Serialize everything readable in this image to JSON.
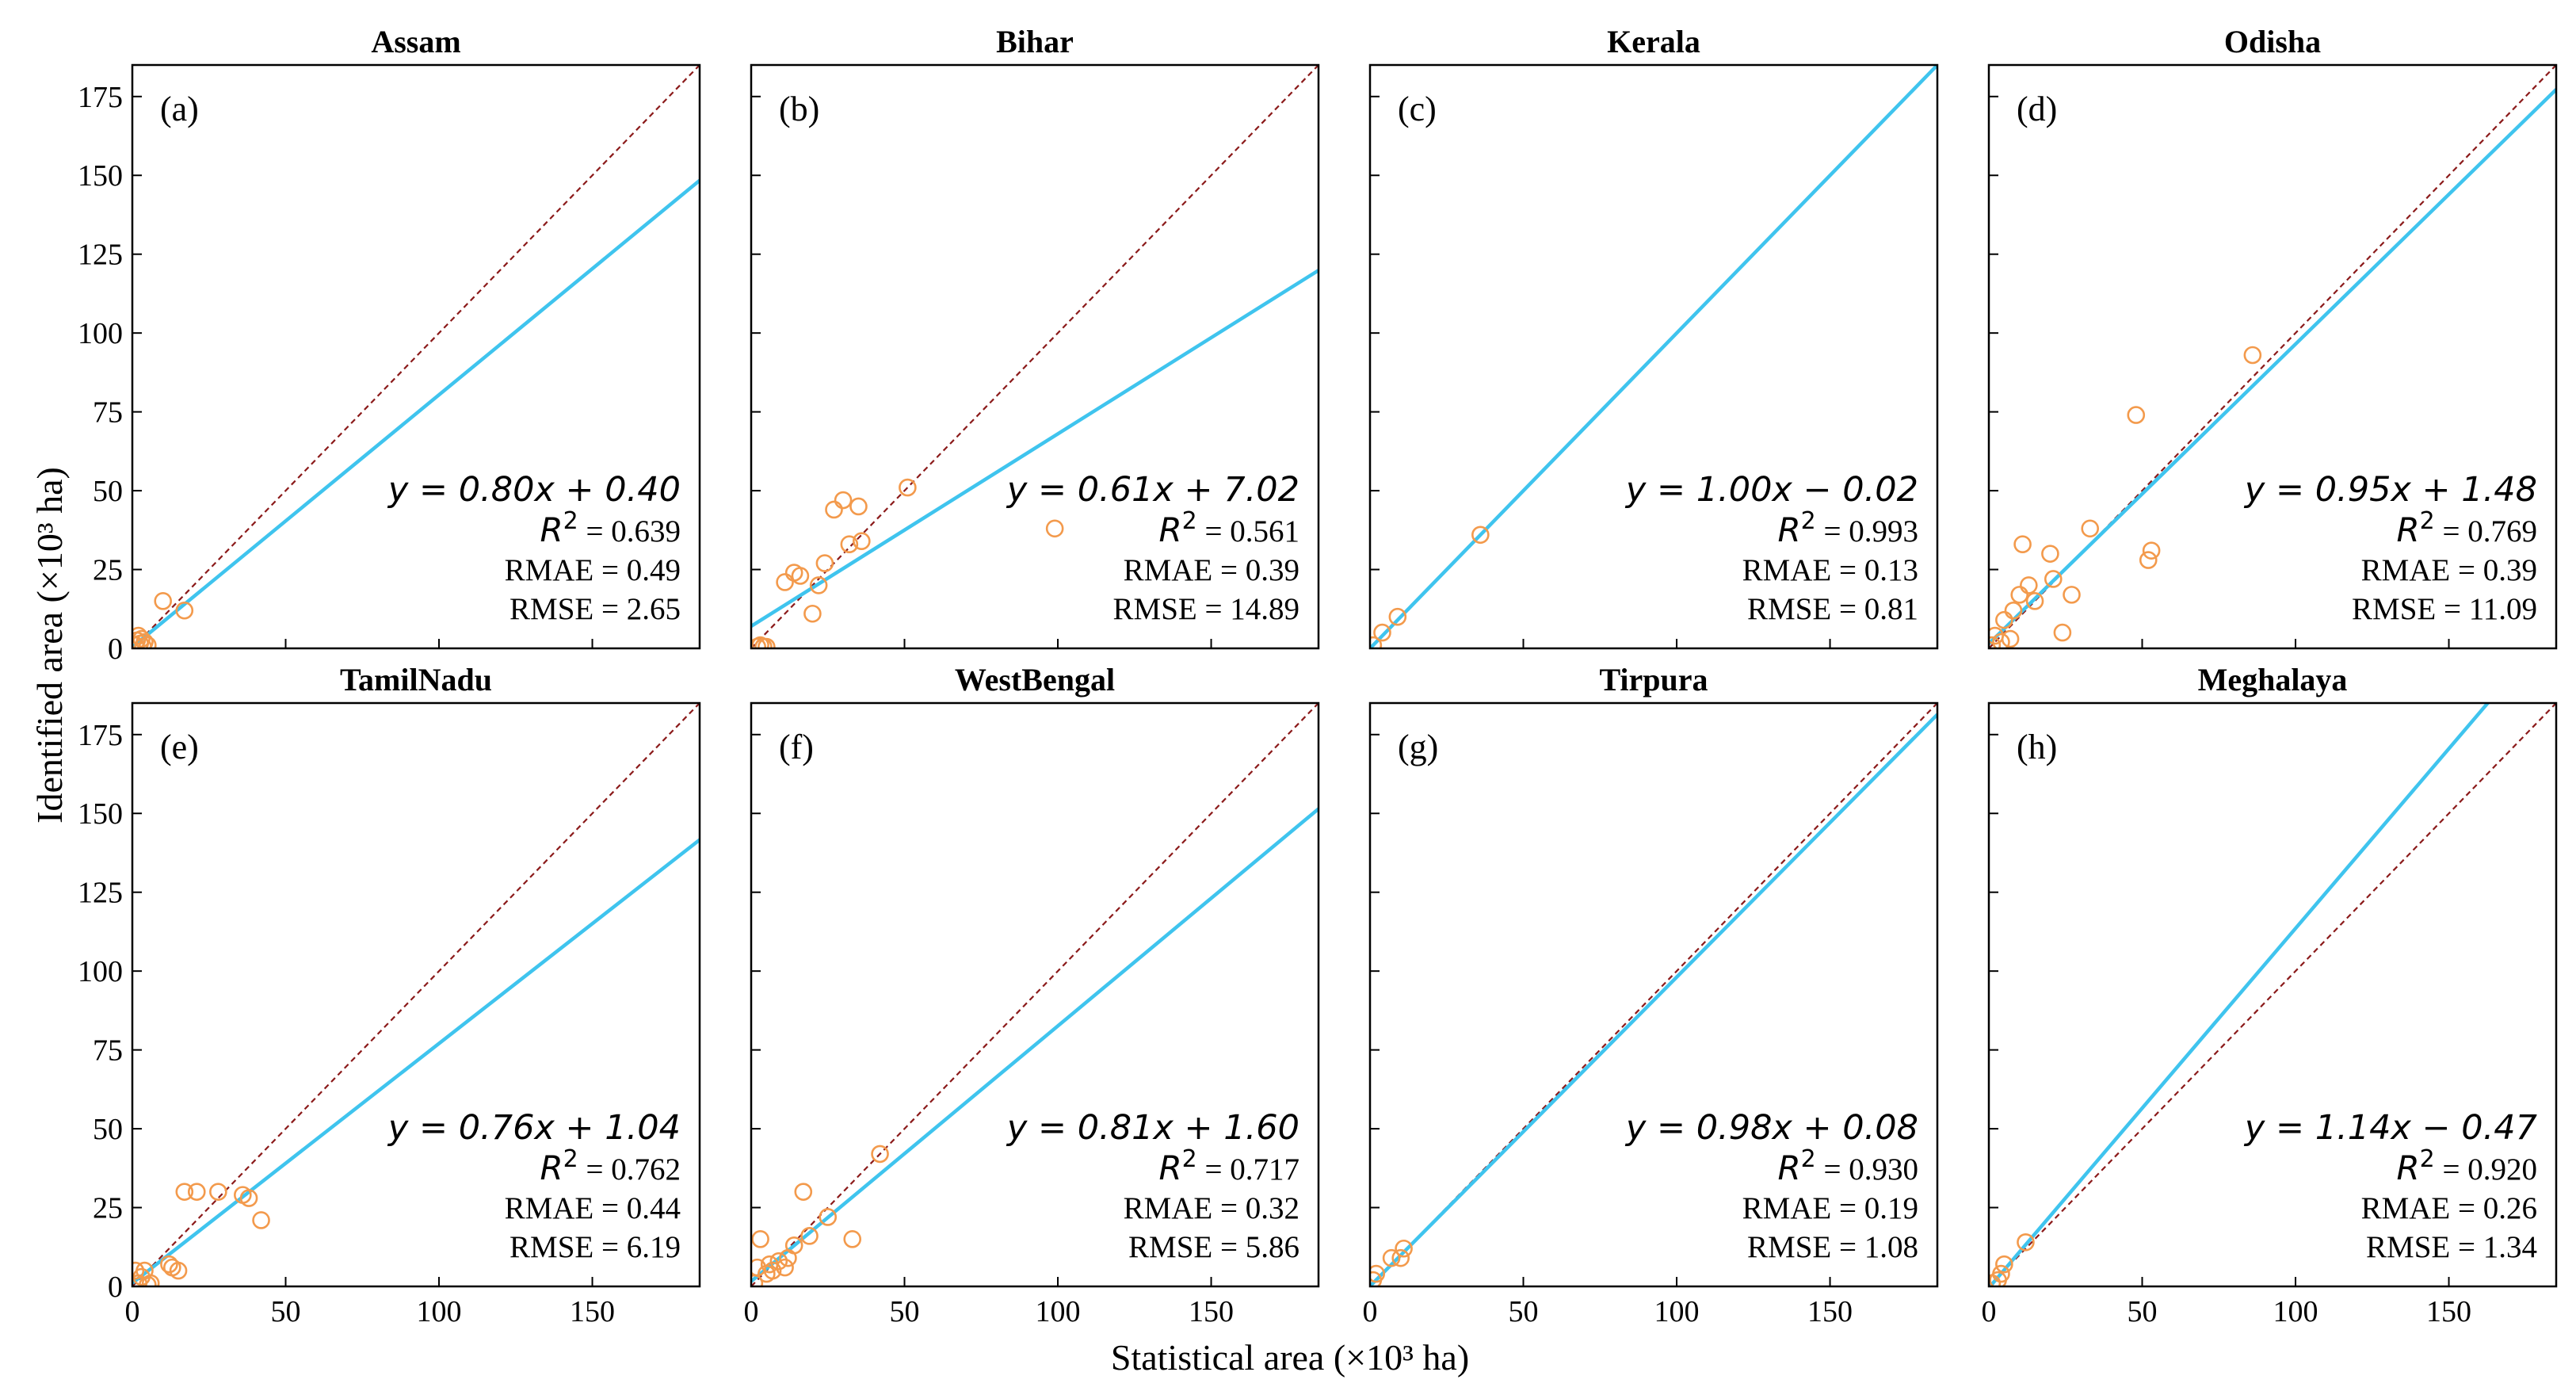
{
  "figure": {
    "xlabel": "Statistical area (×10³ ha)",
    "ylabel": "Identified area (×10³ ha)"
  },
  "style": {
    "fit_color": "#3fc4ee",
    "point_color": "#f39a4c",
    "identity_color": "#8b1a1a",
    "axis_color": "#000000"
  },
  "chart_data": [
    {
      "type": "scatter",
      "title": "Assam",
      "label": "(a)",
      "xlim": [
        0,
        185
      ],
      "ylim": [
        0,
        185
      ],
      "xticks": [
        0,
        50,
        100,
        150
      ],
      "yticks": [
        0,
        25,
        50,
        75,
        100,
        125,
        150,
        175
      ],
      "show_xticklabels": false,
      "show_yticklabels": true,
      "fit": {
        "slope": 0.8,
        "intercept": 0.4
      },
      "equation": "y = 0.80x + 0.40",
      "r2_label": "R",
      "r2_value": "= 0.639",
      "rmae": "RMAE = 0.49",
      "rmse": "RMSE = 2.65",
      "points": [
        [
          1,
          1
        ],
        [
          1.5,
          2.5
        ],
        [
          2,
          4
        ],
        [
          2.5,
          1.5
        ],
        [
          3,
          3
        ],
        [
          3.5,
          0.5
        ],
        [
          4,
          2
        ],
        [
          5,
          1
        ],
        [
          10,
          15
        ],
        [
          17,
          12
        ]
      ]
    },
    {
      "type": "scatter",
      "title": "Bihar",
      "label": "(b)",
      "xlim": [
        0,
        185
      ],
      "ylim": [
        0,
        185
      ],
      "xticks": [
        0,
        50,
        100,
        150
      ],
      "yticks": [
        0,
        25,
        50,
        75,
        100,
        125,
        150,
        175
      ],
      "show_xticklabels": false,
      "show_yticklabels": false,
      "fit": {
        "slope": 0.61,
        "intercept": 7.02
      },
      "equation": "y = 0.61x + 7.02",
      "r2_label": "R",
      "r2_value": "= 0.561",
      "rmae": "RMAE = 0.39",
      "rmse": "RMSE = 14.89",
      "points": [
        [
          2,
          0.5
        ],
        [
          3,
          1
        ],
        [
          4,
          0.5
        ],
        [
          5,
          0.5
        ],
        [
          11,
          21
        ],
        [
          14,
          24
        ],
        [
          16,
          23
        ],
        [
          20,
          11
        ],
        [
          22,
          20
        ],
        [
          24,
          27
        ],
        [
          27,
          44
        ],
        [
          30,
          47
        ],
        [
          32,
          33
        ],
        [
          35,
          45
        ],
        [
          36,
          34
        ],
        [
          51,
          51
        ],
        [
          99,
          38
        ]
      ]
    },
    {
      "type": "scatter",
      "title": "Kerala",
      "label": "(c)",
      "xlim": [
        0,
        185
      ],
      "ylim": [
        0,
        185
      ],
      "xticks": [
        0,
        50,
        100,
        150
      ],
      "yticks": [
        0,
        25,
        50,
        75,
        100,
        125,
        150,
        175
      ],
      "show_xticklabels": false,
      "show_yticklabels": false,
      "fit": {
        "slope": 1.0,
        "intercept": -0.02
      },
      "equation": "y = 1.00x − 0.02",
      "r2_label": "R",
      "r2_value": "= 0.993",
      "rmae": "RMAE = 0.13",
      "rmse": "RMSE = 0.81",
      "points": [
        [
          1,
          1
        ],
        [
          4,
          5
        ],
        [
          9,
          10
        ],
        [
          36,
          36
        ]
      ]
    },
    {
      "type": "scatter",
      "title": "Odisha",
      "label": "(d)",
      "xlim": [
        0,
        185
      ],
      "ylim": [
        0,
        185
      ],
      "xticks": [
        0,
        50,
        100,
        150
      ],
      "yticks": [
        0,
        25,
        50,
        75,
        100,
        125,
        150,
        175
      ],
      "show_xticklabels": false,
      "show_yticklabels": false,
      "fit": {
        "slope": 0.95,
        "intercept": 1.48
      },
      "equation": "y = 0.95x + 1.48",
      "r2_label": "R",
      "r2_value": "= 0.769",
      "rmae": "RMAE = 0.39",
      "rmse": "RMSE = 11.09",
      "points": [
        [
          1,
          1
        ],
        [
          2,
          4
        ],
        [
          4,
          2
        ],
        [
          5,
          9
        ],
        [
          7,
          3
        ],
        [
          8,
          12
        ],
        [
          10,
          17
        ],
        [
          11,
          33
        ],
        [
          13,
          20
        ],
        [
          15,
          15
        ],
        [
          20,
          30
        ],
        [
          21,
          22
        ],
        [
          24,
          5
        ],
        [
          27,
          17
        ],
        [
          33,
          38
        ],
        [
          48,
          74
        ],
        [
          52,
          28
        ],
        [
          53,
          31
        ],
        [
          86,
          93
        ]
      ]
    },
    {
      "type": "scatter",
      "title": "TamilNadu",
      "label": "(e)",
      "xlim": [
        0,
        185
      ],
      "ylim": [
        0,
        185
      ],
      "xticks": [
        0,
        50,
        100,
        150
      ],
      "yticks": [
        0,
        25,
        50,
        75,
        100,
        125,
        150,
        175
      ],
      "show_xticklabels": true,
      "show_yticklabels": true,
      "fit": {
        "slope": 0.76,
        "intercept": 1.04
      },
      "equation": "y = 0.76x + 1.04",
      "r2_label": "R",
      "r2_value": "= 0.762",
      "rmae": "RMAE = 0.44",
      "rmse": "RMSE = 6.19",
      "points": [
        [
          1,
          5
        ],
        [
          2,
          1
        ],
        [
          3,
          3
        ],
        [
          4,
          5
        ],
        [
          5,
          0.5
        ],
        [
          6,
          1
        ],
        [
          12,
          7
        ],
        [
          13,
          6
        ],
        [
          15,
          5
        ],
        [
          17,
          30
        ],
        [
          21,
          30
        ],
        [
          28,
          30
        ],
        [
          36,
          29
        ],
        [
          38,
          28
        ],
        [
          42,
          21
        ]
      ]
    },
    {
      "type": "scatter",
      "title": "WestBengal",
      "label": "(f)",
      "xlim": [
        0,
        185
      ],
      "ylim": [
        0,
        185
      ],
      "xticks": [
        0,
        50,
        100,
        150
      ],
      "yticks": [
        0,
        25,
        50,
        75,
        100,
        125,
        150,
        175
      ],
      "show_xticklabels": true,
      "show_yticklabels": false,
      "fit": {
        "slope": 0.81,
        "intercept": 1.6
      },
      "equation": "y = 0.81x + 1.60",
      "r2_label": "R",
      "r2_value": "= 0.717",
      "rmae": "RMAE = 0.32",
      "rmse": "RMSE = 5.86",
      "points": [
        [
          1,
          1
        ],
        [
          2,
          6
        ],
        [
          3,
          15
        ],
        [
          5,
          4
        ],
        [
          6,
          7
        ],
        [
          7,
          5
        ],
        [
          9,
          8
        ],
        [
          11,
          6
        ],
        [
          12,
          9
        ],
        [
          14,
          13
        ],
        [
          17,
          30
        ],
        [
          19,
          16
        ],
        [
          25,
          22
        ],
        [
          33,
          15
        ],
        [
          42,
          42
        ]
      ]
    },
    {
      "type": "scatter",
      "title": "Tirpura",
      "label": "(g)",
      "xlim": [
        0,
        185
      ],
      "ylim": [
        0,
        185
      ],
      "xticks": [
        0,
        50,
        100,
        150
      ],
      "yticks": [
        0,
        25,
        50,
        75,
        100,
        125,
        150,
        175
      ],
      "show_xticklabels": true,
      "show_yticklabels": false,
      "fit": {
        "slope": 0.98,
        "intercept": 0.08
      },
      "equation": "y = 0.98x + 0.08",
      "r2_label": "R",
      "r2_value": "= 0.930",
      "rmae": "RMAE = 0.19",
      "rmse": "RMSE = 1.08",
      "points": [
        [
          1,
          2
        ],
        [
          2,
          4
        ],
        [
          7,
          9
        ],
        [
          10,
          9
        ],
        [
          11,
          12
        ]
      ]
    },
    {
      "type": "scatter",
      "title": "Meghalaya",
      "label": "(h)",
      "xlim": [
        0,
        185
      ],
      "ylim": [
        0,
        185
      ],
      "xticks": [
        0,
        50,
        100,
        150
      ],
      "yticks": [
        0,
        25,
        50,
        75,
        100,
        125,
        150,
        175
      ],
      "show_xticklabels": true,
      "show_yticklabels": false,
      "fit": {
        "slope": 1.14,
        "intercept": -0.47
      },
      "equation": "y = 1.14x − 0.47",
      "r2_label": "R",
      "r2_value": "= 0.920",
      "rmae": "RMAE = 0.26",
      "rmse": "RMSE = 1.34",
      "points": [
        [
          1,
          1
        ],
        [
          3,
          2
        ],
        [
          4,
          4
        ],
        [
          5,
          7
        ],
        [
          12,
          14
        ]
      ]
    }
  ]
}
